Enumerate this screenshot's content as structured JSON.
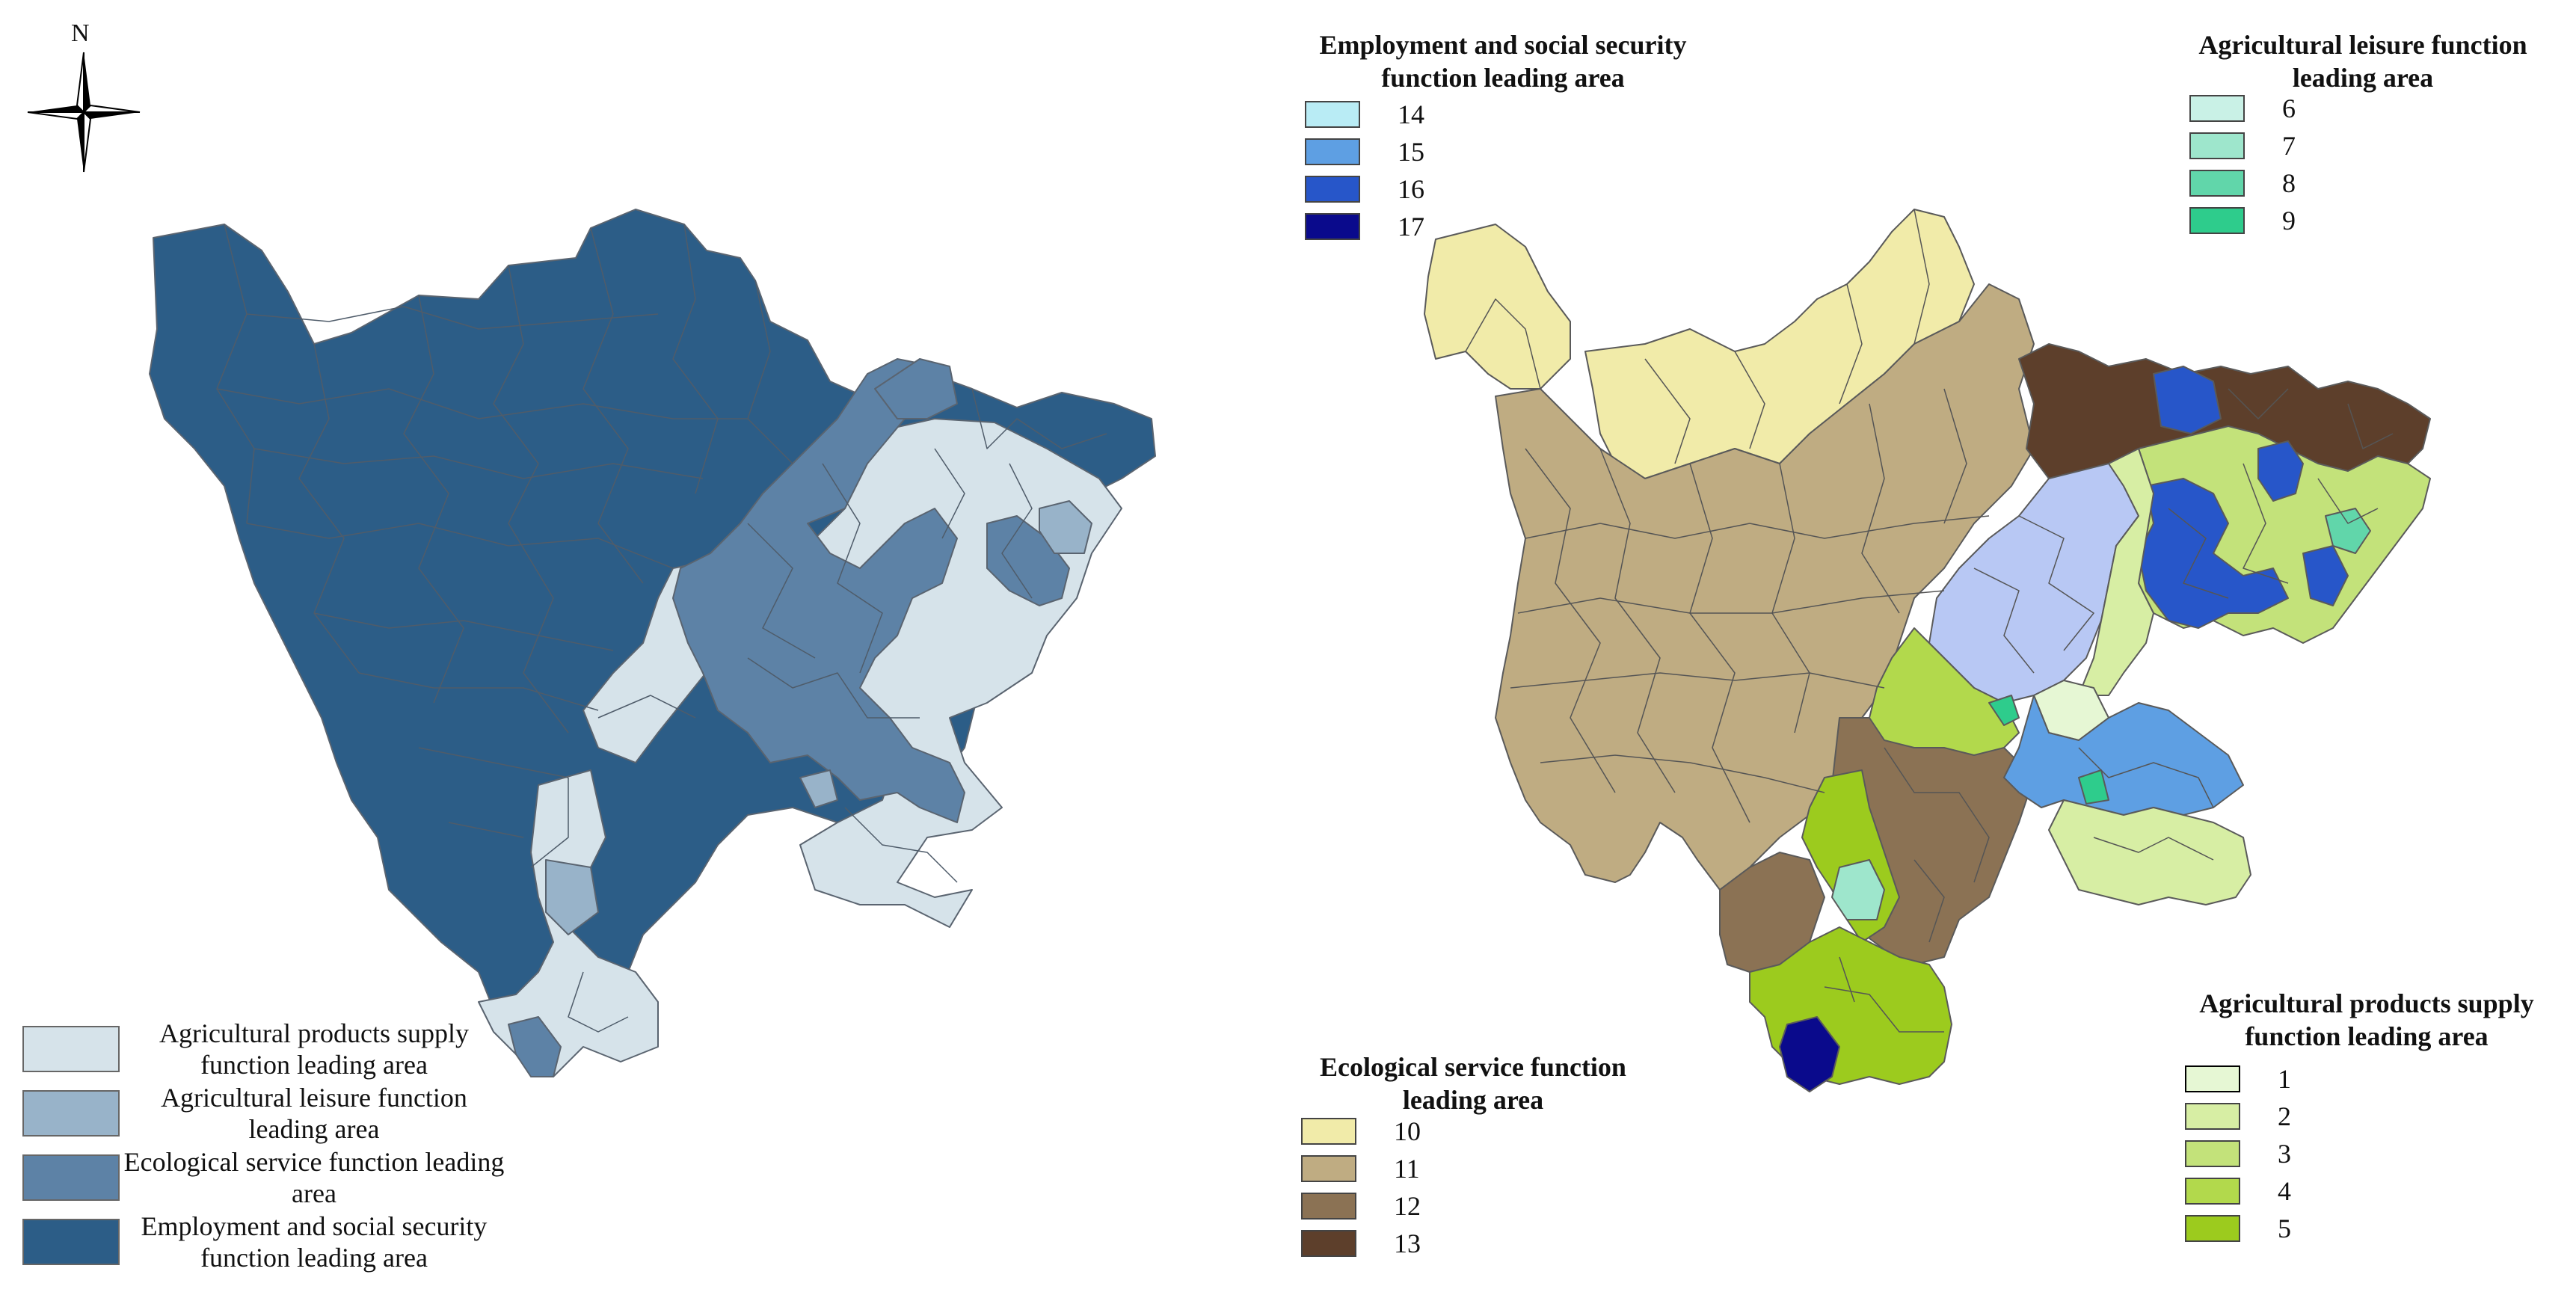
{
  "compass": {
    "label": "N"
  },
  "left_map": {
    "legend": [
      {
        "label": "Agricultural products supply function leading area",
        "color": "#d6e3ea"
      },
      {
        "label": "Agricultural leisure function leading area",
        "color": "#98b3c9"
      },
      {
        "label": "Ecological service function leading area",
        "color": "#5d82a6"
      },
      {
        "label": "Employment and social security function leading area",
        "color": "#2c5d87"
      }
    ]
  },
  "right_map": {
    "legends": {
      "employment": {
        "title": "Employment and social security function leading area",
        "items": [
          {
            "label": "14",
            "color": "#b9ecf5"
          },
          {
            "label": "15",
            "color": "#5e9fe3"
          },
          {
            "label": "16",
            "color": "#2756c9"
          },
          {
            "label": "17",
            "color": "#0a0a8c"
          }
        ]
      },
      "leisure": {
        "title": "Agricultural leisure function leading area",
        "items": [
          {
            "label": "6",
            "color": "#c9f1e6"
          },
          {
            "label": "7",
            "color": "#9ee6cc"
          },
          {
            "label": "8",
            "color": "#61d6aa"
          },
          {
            "label": "9",
            "color": "#2ecc8c"
          }
        ]
      },
      "ecological": {
        "title": "Ecological service function leading area",
        "items": [
          {
            "label": "10",
            "color": "#f1eba9"
          },
          {
            "label": "11",
            "color": "#bfac82"
          },
          {
            "label": "12",
            "color": "#8b7254"
          },
          {
            "label": "13",
            "color": "#5d3f2b"
          }
        ]
      },
      "supply": {
        "title": "Agricultural products supply function leading area",
        "items": [
          {
            "label": "1",
            "color": "#e6f7d4"
          },
          {
            "label": "2",
            "color": "#d7eea4"
          },
          {
            "label": "3",
            "color": "#c3e27a"
          },
          {
            "label": "4",
            "color": "#b2d94c"
          },
          {
            "label": "5",
            "color": "#9ccb1e"
          }
        ]
      }
    },
    "extra_colors": {
      "periwinkle": "#b8c8f4"
    }
  }
}
